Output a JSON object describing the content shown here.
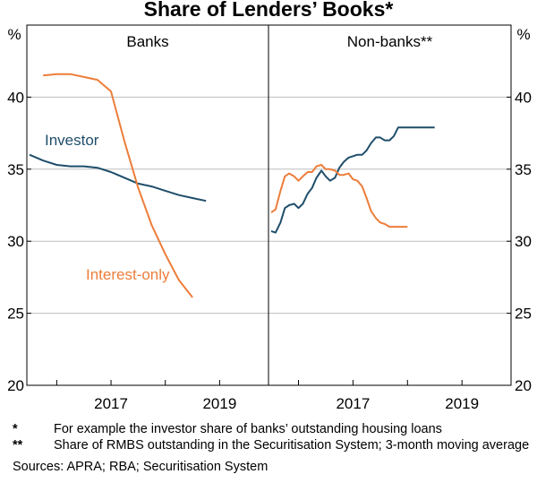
{
  "chart_data": {
    "type": "line",
    "title": "Share of Lenders’ Books*",
    "y_unit": "%",
    "ylim": [
      20,
      45
    ],
    "yticks": [
      20,
      25,
      30,
      35,
      40
    ],
    "x_tick_labels": [
      "2017",
      "2019"
    ],
    "xlim": [
      2015.45,
      2019.9
    ],
    "grid": true,
    "panels": [
      {
        "title": "Banks",
        "series": [
          {
            "name": "Investor",
            "color": "#1f4e6b",
            "x": [
              2015.5,
              2015.75,
              2016.0,
              2016.25,
              2016.5,
              2016.75,
              2017.0,
              2017.25,
              2017.5,
              2017.75,
              2018.0,
              2018.25,
              2018.5,
              2018.75
            ],
            "y": [
              36.0,
              35.6,
              35.3,
              35.2,
              35.2,
              35.1,
              34.8,
              34.4,
              34.0,
              33.8,
              33.5,
              33.2,
              33.0,
              32.8
            ]
          },
          {
            "name": "Interest-only",
            "color": "#ed7d3a",
            "x": [
              2015.75,
              2016.0,
              2016.25,
              2016.5,
              2016.75,
              2017.0,
              2017.25,
              2017.5,
              2017.75,
              2018.0,
              2018.25,
              2018.5
            ],
            "y": [
              41.5,
              41.6,
              41.6,
              41.4,
              41.2,
              40.4,
              36.9,
              33.7,
              31.1,
              29.1,
              27.3,
              26.1
            ]
          }
        ]
      },
      {
        "title": "Non-banks**",
        "series": [
          {
            "name": "Investor",
            "color": "#1f4e6b",
            "x": [
              2015.5,
              2015.58,
              2015.67,
              2015.75,
              2015.83,
              2015.92,
              2016.0,
              2016.08,
              2016.17,
              2016.25,
              2016.33,
              2016.42,
              2016.5,
              2016.58,
              2016.67,
              2016.75,
              2016.83,
              2016.92,
              2017.0,
              2017.08,
              2017.17,
              2017.25,
              2017.33,
              2017.42,
              2017.5,
              2017.58,
              2017.67,
              2017.75,
              2017.83,
              2017.92,
              2018.0,
              2018.08,
              2018.17,
              2018.25,
              2018.33,
              2018.42,
              2018.5
            ],
            "y": [
              30.7,
              30.6,
              31.3,
              32.3,
              32.5,
              32.6,
              32.3,
              32.6,
              33.3,
              33.7,
              34.4,
              34.9,
              34.5,
              34.2,
              34.4,
              35.1,
              35.5,
              35.8,
              35.9,
              36.0,
              36.0,
              36.3,
              36.8,
              37.2,
              37.2,
              37.0,
              37.0,
              37.3,
              37.9,
              37.9,
              37.9,
              37.9,
              37.9,
              37.9,
              37.9,
              37.9,
              37.9
            ]
          },
          {
            "name": "Interest-only",
            "color": "#ed7d3a",
            "x": [
              2015.5,
              2015.58,
              2015.67,
              2015.75,
              2015.83,
              2015.92,
              2016.0,
              2016.08,
              2016.17,
              2016.25,
              2016.33,
              2016.42,
              2016.5,
              2016.58,
              2016.67,
              2016.75,
              2016.83,
              2016.92,
              2017.0,
              2017.08,
              2017.17,
              2017.25,
              2017.33,
              2017.42,
              2017.5,
              2017.58,
              2017.67,
              2017.75,
              2017.83,
              2017.92,
              2018.0
            ],
            "y": [
              32.0,
              32.2,
              33.5,
              34.5,
              34.7,
              34.5,
              34.2,
              34.5,
              34.8,
              34.8,
              35.2,
              35.3,
              35.0,
              35.0,
              34.9,
              34.6,
              34.6,
              34.7,
              34.3,
              34.2,
              33.8,
              33.0,
              32.1,
              31.6,
              31.3,
              31.2,
              31.0,
              31.0,
              31.0,
              31.0,
              31.0
            ]
          }
        ]
      }
    ]
  },
  "notes": [
    {
      "mark": "*",
      "text": "For example the investor share of banks’ outstanding housing loans"
    },
    {
      "mark": "**",
      "text": "Share of RMBS outstanding in the Securitisation System; 3-month moving average"
    }
  ],
  "sources": "Sources: APRA; RBA; Securitisation System"
}
